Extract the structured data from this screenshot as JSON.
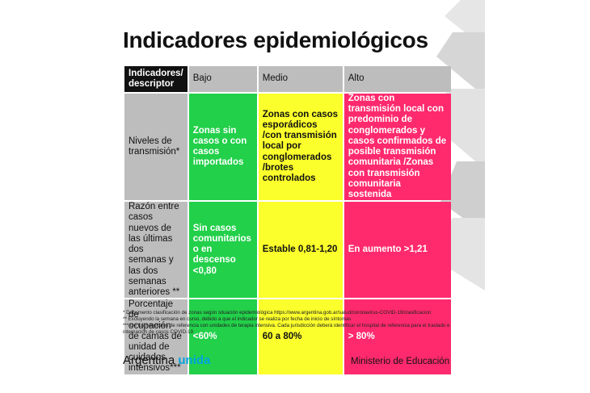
{
  "title": "Indicadores epidemiológicos",
  "table": {
    "headers": [
      "Indicadores/\ndescriptor",
      "Bajo",
      "Medio",
      "Alto"
    ],
    "rows": [
      {
        "label": "Niveles de transmisión*",
        "bajo": "Zonas sin casos o con casos importados",
        "medio": "Zonas con casos esporádicos /con transmisión local por conglomerados /brotes controlados",
        "alto": "Zonas con transmisión local con predominio de conglomerados y casos confirmados de posible transmisión comunitaria /Zonas con transmisión comunitaria sostenida"
      },
      {
        "label": "Razón entre casos nuevos de las últimas dos semanas y las dos semanas anteriores **",
        "bajo": "Sin casos comunitarios o en descenso <0,80",
        "medio": "Estable 0,81-1,20",
        "alto": "En aumento >1,21"
      },
      {
        "label": "Porcentaje de ocupación de camas de unidad de cuidados intensivos***",
        "bajo": "<60%",
        "medio": "60 a 80%",
        "alto": "> 80%"
      }
    ]
  },
  "notes": [
    "* Documento clasificación de zonas según situación epidemiológica https://www.argentina.gob.ar/salud/coronavirus-COVID-19/clasificacion",
    "** Excluyendo la semana en curso, debido a que el indicador se realiza por fecha de inicio de síntomas",
    "*** De los hospitales de referencia con unidades de terapia intensiva. Cada jurisdicción deberá identificar el hospital de referencia para el traslado e",
    "internación de casos COVID-19"
  ],
  "footer": {
    "brand_word": "Argentina",
    "brand_accent": "unida",
    "ministry": "Ministerio de Educación"
  },
  "colors": {
    "bajo": "#22d04a",
    "medio": "#fbff2b",
    "alto": "#ff2a6d",
    "header": "#bdbdbd",
    "accent": "#00a3e0"
  }
}
